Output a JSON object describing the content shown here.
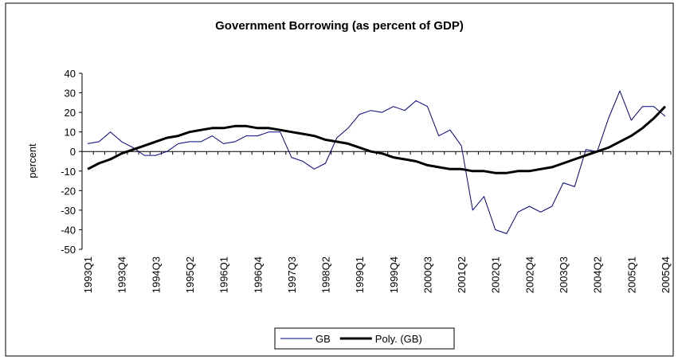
{
  "chart_data": {
    "type": "line",
    "title": "Government Borrowing (as percent of GDP)",
    "y_label": "percent",
    "categories": [
      "1993Q1",
      null,
      null,
      "1993Q4",
      null,
      null,
      "1994Q3",
      null,
      null,
      "1995Q2",
      null,
      null,
      "1996Q1",
      null,
      null,
      "1996Q4",
      null,
      null,
      "1997Q3",
      null,
      null,
      "1998Q2",
      null,
      null,
      "1999Q1",
      null,
      null,
      "1999Q4",
      null,
      null,
      "2000Q3",
      null,
      null,
      "2001Q2",
      null,
      null,
      "2002Q1",
      null,
      null,
      "2002Q4",
      null,
      null,
      "2003Q3",
      null,
      null,
      "2004Q2",
      null,
      null,
      "2005Q1",
      null,
      null,
      "2005Q4"
    ],
    "series": [
      {
        "name": "GB",
        "color": "#000080",
        "width": 1,
        "values": [
          4,
          5,
          10,
          5,
          2,
          -2,
          -2,
          0,
          4,
          5,
          5,
          8,
          4,
          5,
          8,
          8,
          10,
          10,
          -3,
          -5,
          -9,
          -6,
          7,
          12,
          19,
          21,
          20,
          23,
          21,
          26,
          23,
          8,
          11,
          3,
          -30,
          -23,
          -40,
          -42,
          -31,
          -28,
          -31,
          -28,
          -16,
          -18,
          1,
          0,
          17,
          31,
          16,
          23,
          23,
          18
        ]
      },
      {
        "name": "Poly. (GB)",
        "color": "#000000",
        "width": 3,
        "values": [
          -9,
          -6,
          -4,
          -1,
          1,
          3,
          5,
          7,
          8,
          10,
          11,
          12,
          12,
          13,
          13,
          12,
          12,
          11,
          10,
          9,
          8,
          6,
          5,
          4,
          2,
          0,
          -1,
          -3,
          -4,
          -5,
          -7,
          -8,
          -9,
          -9,
          -10,
          -10,
          -11,
          -11,
          -10,
          -10,
          -9,
          -8,
          -6,
          -4,
          -2,
          0,
          2,
          5,
          8,
          12,
          17,
          23
        ]
      }
    ],
    "ylim": [
      -50,
      40
    ],
    "yticks": [
      -50,
      -40,
      -30,
      -20,
      -10,
      0,
      10,
      20,
      30,
      40
    ],
    "legend": "bottom"
  }
}
